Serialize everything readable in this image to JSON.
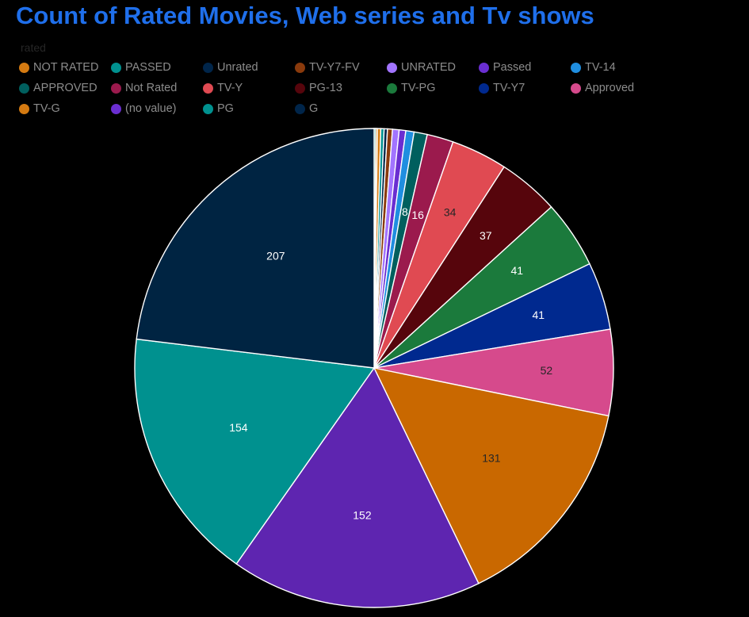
{
  "title": "Count of Rated Movies, Web series and Tv shows",
  "legend_title": "rated",
  "chart_data": {
    "type": "pie",
    "title": "Count of Rated Movies, Web series and Tv shows",
    "legend_title": "rated",
    "legend_rows": [
      [
        "NOT RATED",
        "PASSED",
        "Unrated",
        "TV-Y7-FV",
        "UNRATED",
        "Passed",
        "TV-14"
      ],
      [
        "APPROVED",
        "Not Rated",
        "TV-Y",
        "PG-13",
        "TV-PG",
        "TV-Y7",
        "Approved"
      ],
      [
        "TV-G",
        "(no value)",
        "PG",
        "G"
      ]
    ],
    "slices": [
      {
        "label": "PG",
        "value": 1,
        "color": "#00918f"
      },
      {
        "label": "TV-G",
        "value": 1,
        "color": "#d47a11"
      },
      {
        "label": "NOT RATED",
        "value": 2,
        "color": "#d47a11"
      },
      {
        "label": "PASSED",
        "value": 2,
        "color": "#00918f"
      },
      {
        "label": "Unrated",
        "value": 2,
        "color": "#00254a"
      },
      {
        "label": "TV-Y7-FV",
        "value": 3,
        "color": "#8a3a0c"
      },
      {
        "label": "UNRATED",
        "value": 4,
        "color": "#a274ff"
      },
      {
        "label": "Passed",
        "value": 4,
        "color": "#6a2ed1"
      },
      {
        "label": "TV-14",
        "value": 5,
        "color": "#1f8ee0"
      },
      {
        "label": "APPROVED",
        "value": 8,
        "color": "#005f5e"
      },
      {
        "label": "Not Rated",
        "value": 16,
        "color": "#9b1a4d"
      },
      {
        "label": "TV-Y",
        "value": 34,
        "color": "#e04a52"
      },
      {
        "label": "PG-13",
        "value": 37,
        "color": "#56050c"
      },
      {
        "label": "TV-PG",
        "value": 41,
        "color": "#1b7a3c"
      },
      {
        "label": "TV-Y7",
        "value": 41,
        "color": "#00298f"
      },
      {
        "label": "Approved",
        "value": 52,
        "color": "#d64a8c"
      },
      {
        "label": "TV-G",
        "value": 131,
        "color": "#c96800"
      },
      {
        "label": "(no value)",
        "value": 152,
        "color": "#5e25b0"
      },
      {
        "label": "PG",
        "value": 154,
        "color": "#00918f"
      },
      {
        "label": "G",
        "value": 207,
        "color": "#002442"
      }
    ],
    "labeled_values": [
      8,
      16,
      34,
      37,
      41,
      41,
      52,
      131,
      152,
      154,
      207
    ],
    "label_colors": {
      "8": "#ffffff",
      "16": "#ffffff",
      "34": "#262626",
      "37": "#ffffff",
      "41": "#ffffff",
      "52": "#262626",
      "131": "#262626",
      "152": "#ffffff",
      "154": "#ffffff",
      "207": "#ffffff"
    },
    "legend_colors": {
      "NOT RATED": "#d47a11",
      "PASSED": "#00918f",
      "Unrated": "#00254a",
      "TV-Y7-FV": "#8a3a0c",
      "UNRATED": "#a274ff",
      "Passed": "#6a2ed1",
      "TV-14": "#1f8ee0",
      "APPROVED": "#005f5e",
      "Not Rated": "#9b1a4d",
      "TV-Y": "#e04a52",
      "PG-13": "#56050c",
      "TV-PG": "#1b7a3c",
      "TV-Y7": "#00298f",
      "Approved": "#d64a8c",
      "TV-G": "#d47a11",
      "(no value)": "#6a2ed1",
      "PG": "#00918f",
      "G": "#00254a"
    },
    "start_angle": "12 o'clock",
    "direction": "clockwise",
    "legend_position": "top-left"
  }
}
